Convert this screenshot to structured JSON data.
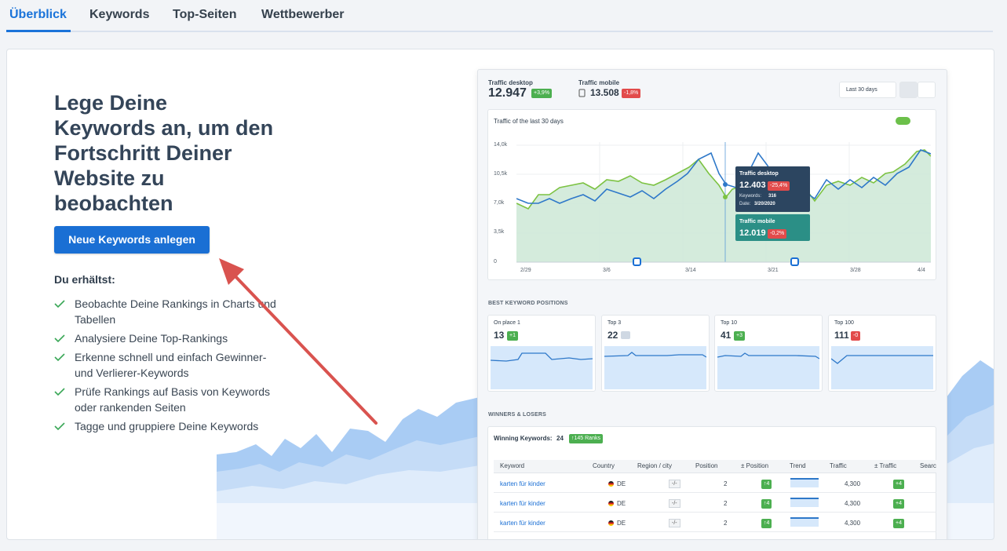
{
  "tabs": [
    "Überblick",
    "Keywords",
    "Top-Seiten",
    "Wettbewerber"
  ],
  "hero": {
    "title": "Lege Deine Keywords an, um den Fortschritt Deiner Website zu beobachten",
    "button": "Neue Keywords anlegen",
    "subtitle": "Du erhältst:",
    "features": [
      "Beobachte Deine Rankings in Charts und Tabellen",
      "Analysiere Deine Top-Rankings",
      "Erkenne schnell und einfach Gewinner- und Verlierer-Keywords",
      "Prüfe Rankings auf Basis von Keywords oder rankenden Seiten",
      "Tagge und gruppiere Deine Keywords"
    ]
  },
  "preview": {
    "traffic_desktop": {
      "label": "Traffic desktop",
      "value": "12.947",
      "change": "+3,9%"
    },
    "traffic_mobile": {
      "label": "Traffic mobile",
      "value": "13.508",
      "change": "-1,8%"
    },
    "date_range": "Last 30 days",
    "chart": {
      "title": "Traffic of the last 30 days",
      "y_labels": [
        "14,0k",
        "10,5k",
        "7,0k",
        "3,5k",
        "0"
      ],
      "x_labels": [
        "2/29",
        "3/6",
        "3/14",
        "3/21",
        "3/28",
        "4/4"
      ],
      "tooltip_desktop": {
        "label": "Traffic desktop",
        "value": "12.403",
        "change": "-25,4%",
        "keywords_label": "Keywords:",
        "keywords": "316",
        "date_label": "Date:",
        "date": "3/20/2020"
      },
      "tooltip_mobile": {
        "label": "Traffic mobile",
        "value": "12.019",
        "change": "-0,2%"
      }
    },
    "best_positions": {
      "title": "BEST KEYWORD POSITIONS",
      "cards": [
        {
          "label": "On place 1",
          "value": "13",
          "change": "+1"
        },
        {
          "label": "Top 3",
          "value": "22"
        },
        {
          "label": "Top 10",
          "value": "41",
          "change": "+3"
        },
        {
          "label": "Top 100",
          "value": "111",
          "change": "-0"
        }
      ]
    },
    "winners": {
      "title": "WINNERS & LOSERS",
      "winning_label": "Winning Keywords:",
      "winning_count": "24",
      "ranks": "↑145 Ranks",
      "columns": [
        "Keyword",
        "Country",
        "Region / city",
        "Position",
        "± Position",
        "Trend",
        "Traffic",
        "± Traffic",
        "Searc"
      ],
      "rows": [
        [
          "karten für kinder",
          "DE",
          "-/-",
          "2",
          "↑4",
          "4,300",
          "+4"
        ],
        [
          "karten für kinder",
          "DE",
          "-/-",
          "2",
          "↑4",
          "4,300",
          "+4"
        ],
        [
          "karten für kinder",
          "DE",
          "-/-",
          "2",
          "↑4",
          "4,300",
          "+4"
        ]
      ]
    }
  }
}
